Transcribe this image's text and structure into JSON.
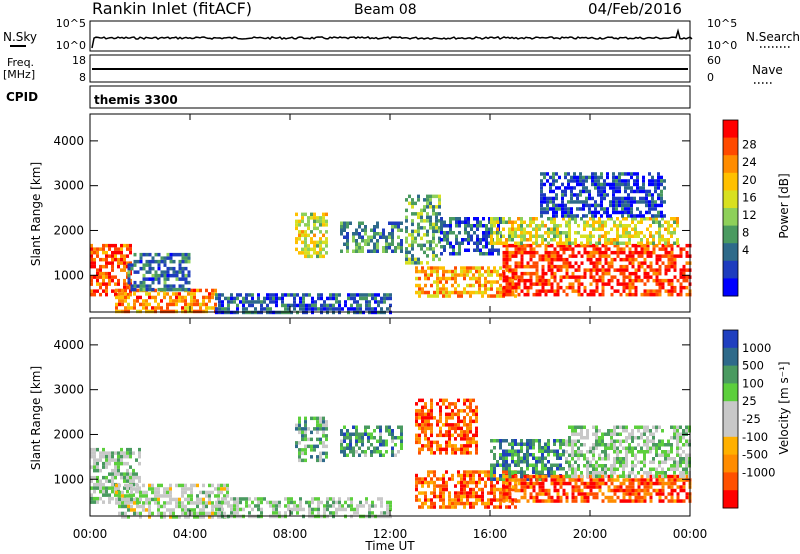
{
  "header": {
    "title": "Rankin Inlet (fitACF)",
    "beam": "Beam 08",
    "date": "04/Feb/2016"
  },
  "noise_panel": {
    "left_label": "N.Sky",
    "right_label": "N.Search",
    "left_ticks": [
      "10^5",
      "10^0"
    ],
    "right_ticks": [
      "10^5",
      "10^0"
    ],
    "line_color": "#000000"
  },
  "freq_panel": {
    "left_label_line1": "Freq.",
    "left_label_line2": "[MHz]",
    "right_label": "Nave",
    "left_ticks": [
      "18",
      "8"
    ],
    "right_ticks": [
      "60",
      "0"
    ]
  },
  "cpid_panel": {
    "label": "CPID",
    "value": "themis 3300"
  },
  "chart_data": [
    {
      "type": "heatmap",
      "name": "power",
      "ylabel": "Slant Range [km]",
      "xlabel": "Time UT",
      "xlim_hours": [
        0,
        24
      ],
      "ylim_km": [
        180,
        4600
      ],
      "yticks": [
        1000,
        2000,
        3000,
        4000
      ],
      "colorbar": {
        "label": "Power [dB]",
        "ticks": [
          "28",
          "24",
          "20",
          "16",
          "12",
          "8",
          "4"
        ],
        "colors": [
          "#ff0000",
          "#ff4a00",
          "#ff8c00",
          "#ffc000",
          "#d8e020",
          "#8ed05a",
          "#4a9a60",
          "#2e6a8a",
          "#1e3cbe",
          "#0000ff"
        ]
      },
      "regions": [
        {
          "t0": 0.0,
          "t1": 1.6,
          "r0": 600,
          "r1": 1700,
          "level": 0.85
        },
        {
          "t0": 1.0,
          "t1": 5.0,
          "r0": 180,
          "r1": 700,
          "level": 0.75
        },
        {
          "t0": 1.5,
          "t1": 4.0,
          "r0": 700,
          "r1": 1500,
          "level": 0.25
        },
        {
          "t0": 8.2,
          "t1": 9.5,
          "r0": 1400,
          "r1": 2400,
          "level": 0.55
        },
        {
          "t0": 10.0,
          "t1": 12.5,
          "r0": 1500,
          "r1": 2200,
          "level": 0.3
        },
        {
          "t0": 12.6,
          "t1": 14.0,
          "r0": 1300,
          "r1": 2800,
          "level": 0.4
        },
        {
          "t0": 13.0,
          "t1": 17.0,
          "r0": 500,
          "r1": 1200,
          "level": 0.7
        },
        {
          "t0": 14.0,
          "t1": 16.5,
          "r0": 1500,
          "r1": 2300,
          "level": 0.2
        },
        {
          "t0": 16.5,
          "t1": 24.0,
          "r0": 600,
          "r1": 1700,
          "level": 0.9
        },
        {
          "t0": 16.0,
          "t1": 23.5,
          "r0": 1700,
          "r1": 2300,
          "level": 0.55
        },
        {
          "t0": 18.0,
          "t1": 23.0,
          "r0": 2300,
          "r1": 3300,
          "level": 0.15
        },
        {
          "t0": 5.0,
          "t1": 12.0,
          "r0": 180,
          "r1": 600,
          "level": 0.2
        }
      ]
    },
    {
      "type": "heatmap",
      "name": "velocity",
      "ylabel": "Slant Range [km]",
      "xlabel": "Time UT",
      "xlim_hours": [
        0,
        24
      ],
      "ylim_km": [
        180,
        4600
      ],
      "yticks": [
        1000,
        2000,
        3000,
        4000
      ],
      "colorbar": {
        "label": "Velocity [m s⁻¹]",
        "ticks": [
          "1000",
          "500",
          "100",
          "25",
          "-25",
          "-100",
          "-500",
          "-1000"
        ],
        "colors": [
          "#1f3fbf",
          "#2e6a8a",
          "#4a9a60",
          "#5ccf3c",
          "#c8c8c8",
          "#c8c8c8",
          "#ffb000",
          "#ff8c00",
          "#ff5000",
          "#ff0000"
        ]
      },
      "regions": [
        {
          "t0": 0.0,
          "t1": 2.0,
          "r0": 500,
          "r1": 1700,
          "level": 0.6
        },
        {
          "t0": 1.0,
          "t1": 5.5,
          "r0": 180,
          "r1": 900,
          "level": 0.55
        },
        {
          "t0": 8.2,
          "t1": 9.5,
          "r0": 1400,
          "r1": 2400,
          "level": 0.7
        },
        {
          "t0": 10.0,
          "t1": 12.5,
          "r0": 1500,
          "r1": 2200,
          "level": 0.75
        },
        {
          "t0": 13.0,
          "t1": 15.5,
          "r0": 1600,
          "r1": 2800,
          "level": 0.15
        },
        {
          "t0": 13.0,
          "t1": 17.0,
          "r0": 400,
          "r1": 1200,
          "level": 0.2
        },
        {
          "t0": 16.0,
          "t1": 19.0,
          "r0": 1000,
          "r1": 1900,
          "level": 0.8
        },
        {
          "t0": 16.5,
          "t1": 24.0,
          "r0": 500,
          "r1": 1100,
          "level": 0.15
        },
        {
          "t0": 19.0,
          "t1": 24.0,
          "r0": 1100,
          "r1": 2200,
          "level": 0.6
        },
        {
          "t0": 5.0,
          "t1": 12.0,
          "r0": 180,
          "r1": 600,
          "level": 0.6
        }
      ]
    }
  ],
  "time_axis": {
    "ticks": [
      "00:00",
      "04:00",
      "08:00",
      "12:00",
      "16:00",
      "20:00",
      "00:00"
    ],
    "label": "Time UT"
  }
}
